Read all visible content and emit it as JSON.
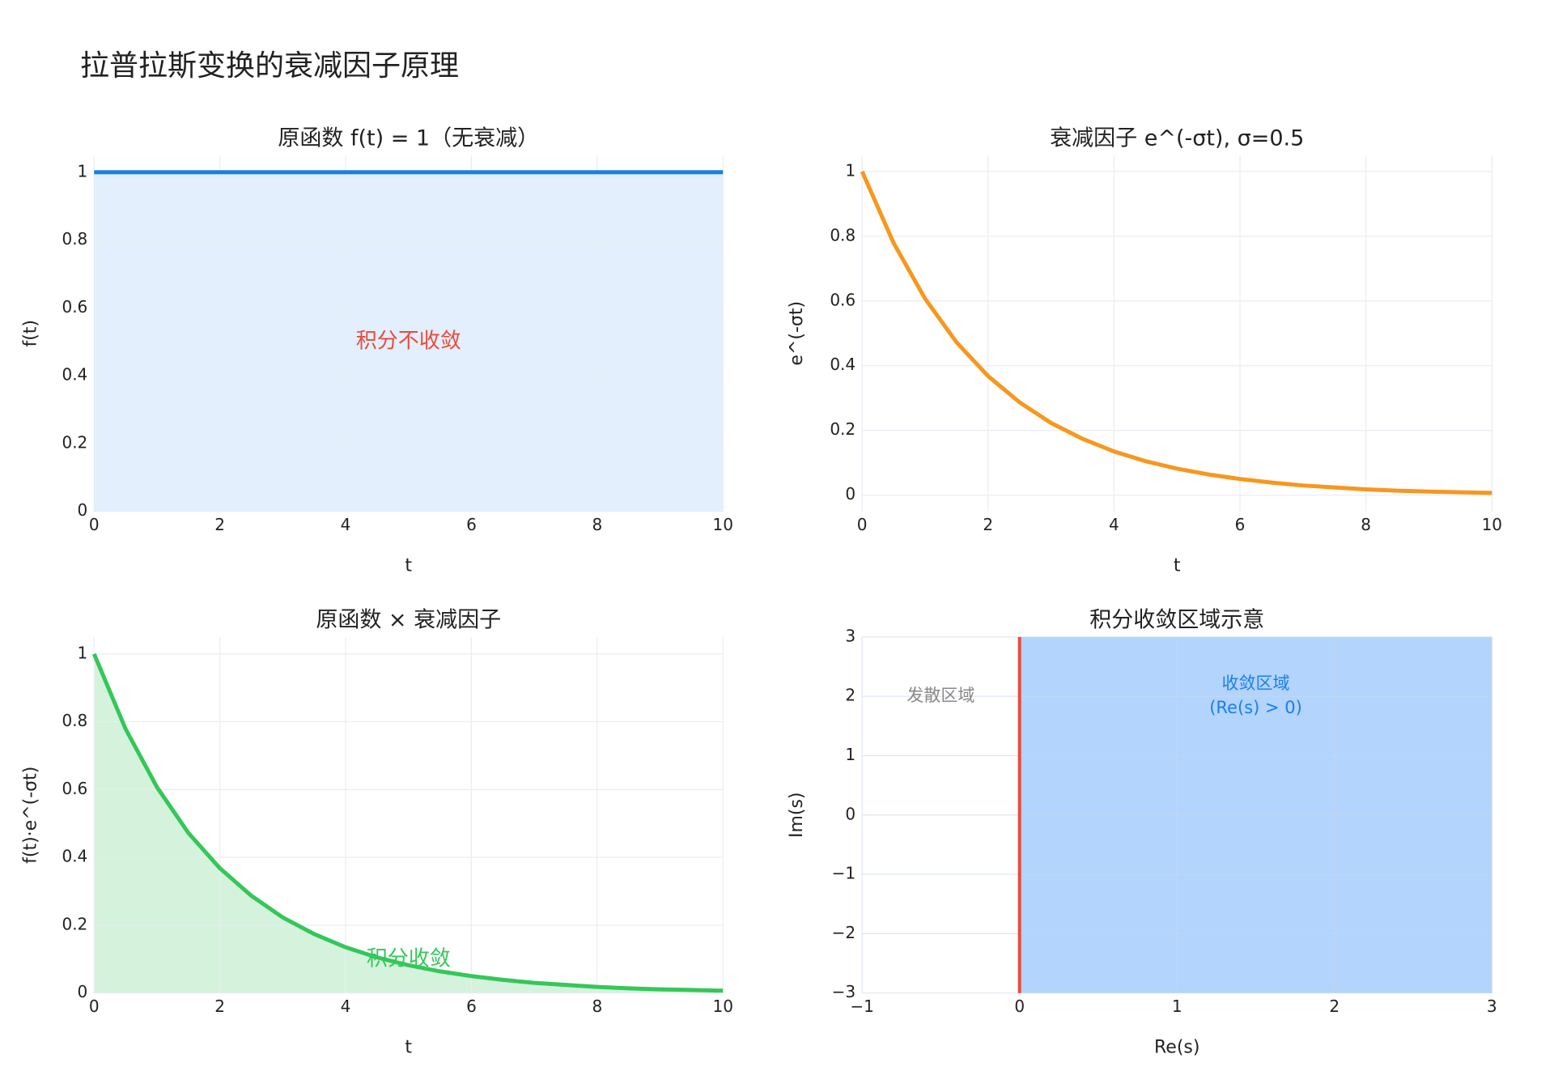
{
  "title": "拉普拉斯变换的衰减因子原理",
  "chart_data": [
    {
      "type": "area-line",
      "title": "原函数 f(t) = 1（无衰减）",
      "x_label": "t",
      "y_label": "f(t)",
      "x": [
        0,
        10
      ],
      "values": [
        1,
        1
      ],
      "color": "#1a7fe8",
      "fill_color": "#e3effd",
      "xlim": [
        0,
        10
      ],
      "ylim": [
        0,
        1.05
      ],
      "xticks": [
        0,
        2,
        4,
        6,
        8,
        10
      ],
      "yticks": [
        0,
        0.2,
        0.4,
        0.6,
        0.8,
        1
      ],
      "grid": true,
      "annotations": [
        {
          "text": "积分不收敛",
          "x": 5,
          "y": 0.5,
          "color": "#e74c3c"
        }
      ]
    },
    {
      "type": "line",
      "title": "衰减因子 e^(-σt), σ=0.5",
      "x_label": "t",
      "y_label": "e^(-σt)",
      "x": [
        0,
        0.5,
        1,
        1.5,
        2,
        2.5,
        3,
        3.5,
        4,
        4.5,
        5,
        5.5,
        6,
        6.5,
        7,
        7.5,
        8,
        8.5,
        9,
        9.5,
        10
      ],
      "values": [
        1,
        0.779,
        0.607,
        0.472,
        0.368,
        0.287,
        0.223,
        0.174,
        0.135,
        0.105,
        0.082,
        0.064,
        0.05,
        0.039,
        0.03,
        0.024,
        0.018,
        0.014,
        0.011,
        0.009,
        0.007
      ],
      "color": "#f7971e",
      "xlim": [
        0,
        10
      ],
      "ylim": [
        -0.05,
        1.05
      ],
      "xticks": [
        0,
        2,
        4,
        6,
        8,
        10
      ],
      "yticks": [
        0,
        0.2,
        0.4,
        0.6,
        0.8,
        1
      ],
      "grid": true
    },
    {
      "type": "area-line",
      "title": "原函数 × 衰减因子",
      "x_label": "t",
      "y_label": "f(t)·e^(-σt)",
      "x": [
        0,
        0.5,
        1,
        1.5,
        2,
        2.5,
        3,
        3.5,
        4,
        4.5,
        5,
        5.5,
        6,
        6.5,
        7,
        7.5,
        8,
        8.5,
        9,
        9.5,
        10
      ],
      "values": [
        1,
        0.779,
        0.607,
        0.472,
        0.368,
        0.287,
        0.223,
        0.174,
        0.135,
        0.105,
        0.082,
        0.064,
        0.05,
        0.039,
        0.03,
        0.024,
        0.018,
        0.014,
        0.011,
        0.009,
        0.007
      ],
      "color": "#34c759",
      "fill_color": "#d5f2dd",
      "xlim": [
        0,
        10
      ],
      "ylim": [
        0,
        1.05
      ],
      "xticks": [
        0,
        2,
        4,
        6,
        8,
        10
      ],
      "yticks": [
        0,
        0.2,
        0.4,
        0.6,
        0.8,
        1
      ],
      "grid": true,
      "annotations": [
        {
          "text": "积分收敛",
          "x": 5,
          "y": 0.1,
          "color": "#34c759"
        }
      ]
    },
    {
      "type": "region",
      "title": "积分收敛区域示意",
      "x_label": "Re(s)",
      "y_label": "Im(s)",
      "region": {
        "x": [
          0,
          3
        ],
        "y": [
          -3,
          3
        ]
      },
      "color": "#b3d4fc",
      "boundary_x": 0,
      "boundary_color": "#e74c3c",
      "xlim": [
        -1,
        3
      ],
      "ylim": [
        -3,
        3
      ],
      "xticks": [
        {
          "value": -1,
          "label": "−1"
        },
        0,
        1,
        2,
        3
      ],
      "yticks": [
        {
          "value": -3,
          "label": "−3"
        },
        {
          "value": -2,
          "label": "−2"
        },
        {
          "value": -1,
          "label": "−1"
        },
        0,
        1,
        2,
        3
      ],
      "grid": true,
      "annotations": [
        {
          "text": [
            "发散区域"
          ],
          "x": -0.5,
          "y": 2,
          "color": "#888888"
        },
        {
          "text": [
            "收敛区域",
            "(Re(s) > 0)"
          ],
          "x": 1.5,
          "y": 2,
          "color": "#1a7fe8"
        }
      ]
    }
  ]
}
